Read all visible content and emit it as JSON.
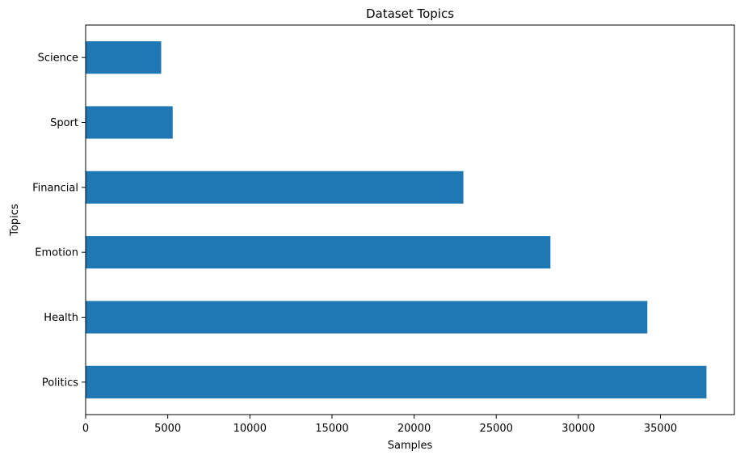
{
  "chart_data": {
    "type": "bar",
    "orientation": "horizontal",
    "title": "Dataset Topics",
    "xlabel": "Samples",
    "ylabel": "Topics",
    "categories": [
      "Politics",
      "Health",
      "Emotion",
      "Financial",
      "Sport",
      "Science"
    ],
    "values": [
      37800,
      34200,
      28300,
      23000,
      5300,
      4600
    ],
    "xlim": [
      0,
      39500
    ],
    "xticks": [
      0,
      5000,
      10000,
      15000,
      20000,
      25000,
      30000,
      35000
    ],
    "grid": false,
    "legend": "none",
    "bar_color": "#1f77b4"
  }
}
